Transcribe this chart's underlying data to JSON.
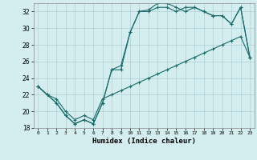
{
  "title": "",
  "xlabel": "Humidex (Indice chaleur)",
  "bg_color": "#d4eef0",
  "grid_color": "#b0d0d4",
  "line_color": "#1a6b6b",
  "xlim": [
    -0.5,
    23.5
  ],
  "ylim": [
    18,
    33
  ],
  "xticks": [
    0,
    1,
    2,
    3,
    4,
    5,
    6,
    7,
    8,
    9,
    10,
    11,
    12,
    13,
    14,
    15,
    16,
    17,
    18,
    19,
    20,
    21,
    22,
    23
  ],
  "yticks": [
    18,
    20,
    22,
    24,
    26,
    28,
    30,
    32
  ],
  "line1_x": [
    0,
    1,
    2,
    3,
    4,
    5,
    6,
    7,
    8,
    9,
    10,
    11,
    12,
    13,
    14,
    15,
    16,
    17,
    18,
    19,
    20,
    21,
    22,
    23
  ],
  "line1_y": [
    23,
    22,
    21,
    19.5,
    18.5,
    19,
    18.5,
    21,
    25,
    25,
    29.5,
    32,
    32,
    32.5,
    32.5,
    32,
    32.5,
    32.5,
    32,
    31.5,
    31.5,
    30.5,
    32.5,
    26.5
  ],
  "line2_x": [
    0,
    1,
    2,
    3,
    4,
    5,
    6,
    7,
    8,
    9,
    10,
    11,
    12,
    13,
    14,
    15,
    16,
    17,
    18,
    19,
    20,
    21,
    22,
    23
  ],
  "line2_y": [
    23,
    22,
    21,
    19.5,
    18.5,
    19,
    18.5,
    21,
    25,
    25.5,
    29.5,
    32,
    32.2,
    33,
    33,
    32.5,
    32,
    32.5,
    32,
    31.5,
    31.5,
    30.5,
    32.5,
    26.5
  ],
  "line3_x": [
    0,
    1,
    2,
    3,
    4,
    5,
    6,
    7,
    8,
    9,
    10,
    11,
    12,
    13,
    14,
    15,
    16,
    17,
    18,
    19,
    20,
    21,
    22,
    23
  ],
  "line3_y": [
    23,
    22,
    21.5,
    20,
    19,
    19.5,
    19,
    21.5,
    22,
    22.5,
    23,
    23.5,
    24,
    24.5,
    25,
    25.5,
    26,
    26.5,
    27,
    27.5,
    28,
    28.5,
    29,
    26.5
  ]
}
